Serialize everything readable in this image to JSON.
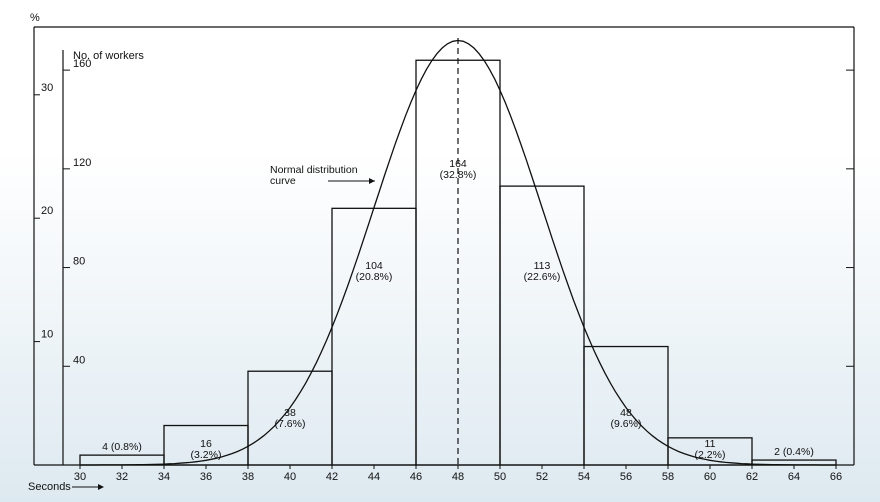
{
  "chart_data": {
    "type": "bar",
    "title": "",
    "xlabel": "Seconds",
    "ylabel_left_outer": "%",
    "ylabel_left_inner": "No. of workers",
    "x_ticks": [
      30,
      32,
      34,
      36,
      38,
      40,
      42,
      44,
      46,
      48,
      50,
      52,
      54,
      56,
      58,
      60,
      62,
      64,
      66
    ],
    "xlim": [
      30,
      66
    ],
    "ylim_percent": [
      0,
      34
    ],
    "ylim_workers": [
      0,
      170
    ],
    "percent_ticks": [
      10,
      20,
      30
    ],
    "worker_ticks": [
      40,
      80,
      120,
      160
    ],
    "bins": [
      {
        "from": 30,
        "to": 34,
        "workers": 4,
        "label": "4 (0.8%)"
      },
      {
        "from": 34,
        "to": 38,
        "workers": 16,
        "count_label": "16",
        "pct_label": "(3.2%)"
      },
      {
        "from": 38,
        "to": 42,
        "workers": 38,
        "count_label": "38",
        "pct_label": "(7.6%)"
      },
      {
        "from": 42,
        "to": 46,
        "workers": 104,
        "count_label": "104",
        "pct_label": "(20.8%)"
      },
      {
        "from": 46,
        "to": 50,
        "workers": 164,
        "count_label": "164",
        "pct_label": "(32.8%)"
      },
      {
        "from": 50,
        "to": 54,
        "workers": 113,
        "count_label": "113",
        "pct_label": "(22.6%)"
      },
      {
        "from": 54,
        "to": 58,
        "workers": 48,
        "count_label": "48",
        "pct_label": "(9.6%)"
      },
      {
        "from": 58,
        "to": 62,
        "workers": 11,
        "count_label": "11",
        "pct_label": "(2.2%)"
      },
      {
        "from": 62,
        "to": 66,
        "workers": 2,
        "label": "2 (0.4%)"
      }
    ],
    "curve": {
      "label_line1": "Normal distribution",
      "label_line2": "curve",
      "mean": 48,
      "sd": 4.0,
      "peak_workers": 172
    },
    "mean_line_x": 48,
    "grid": false
  }
}
